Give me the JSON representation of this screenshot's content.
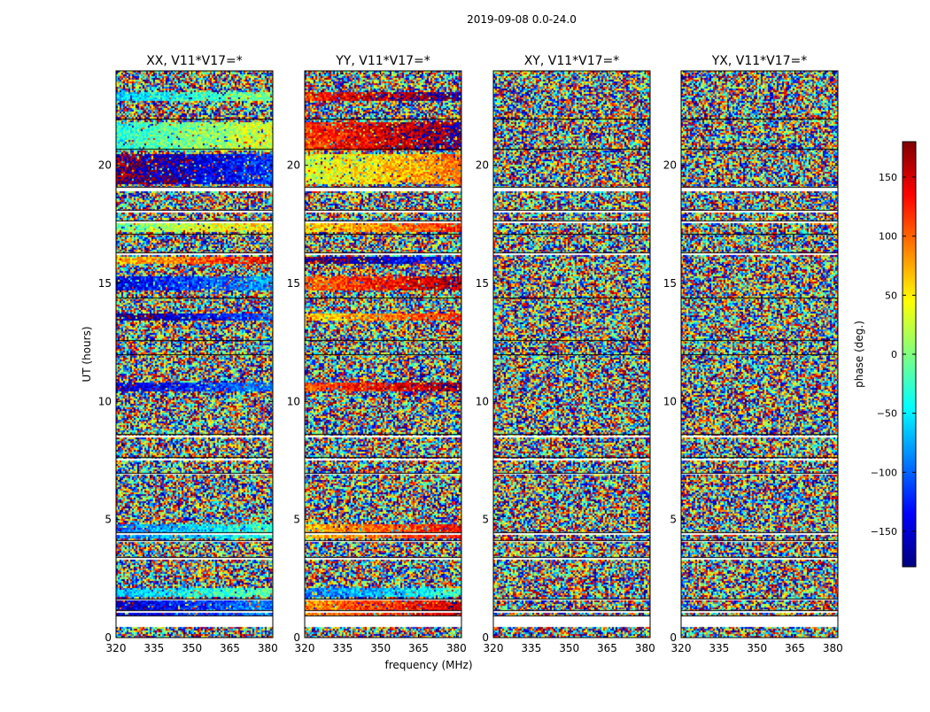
{
  "figure": {
    "suptitle": "2019-09-08 0.0-24.0",
    "xlabel": "frequency (MHz)",
    "ylabel": "UT (hours)"
  },
  "colorbar": {
    "label": "phase (deg.)",
    "range": [
      -180,
      180
    ],
    "ticks": [
      150,
      100,
      50,
      0,
      -50,
      -100,
      -150
    ],
    "tick_labels": [
      "150",
      "100",
      "50",
      "0",
      "−50",
      "−100",
      "−150"
    ],
    "colormap": "jet",
    "colors": [
      "#00007f",
      "#0000ff",
      "#007fff",
      "#00ffff",
      "#7fff7f",
      "#ffff00",
      "#ff7f00",
      "#ff0000",
      "#7f0000"
    ]
  },
  "chart_data": {
    "type": "heatmap",
    "quantity": "visibility phase (deg.)",
    "xlim": [
      320,
      382
    ],
    "ylim": [
      0,
      24
    ],
    "xticks": [
      320,
      335,
      350,
      365,
      380
    ],
    "yticks": [
      0,
      5,
      10,
      15,
      20
    ],
    "panels": [
      {
        "title": "XX, V11*V17=*",
        "show_ylabel": true,
        "show_xlabel": false,
        "coherent_bands": [
          [
            0.9,
            1.6,
            -120
          ],
          [
            1.7,
            2.1,
            -40
          ],
          [
            4.2,
            4.8,
            -60
          ],
          [
            10.4,
            10.8,
            -120
          ],
          [
            13.4,
            13.7,
            -140
          ],
          [
            14.7,
            15.3,
            -110
          ],
          [
            15.8,
            16.1,
            100
          ],
          [
            17.2,
            17.6,
            30
          ],
          [
            19.2,
            20.5,
            -150
          ],
          [
            20.6,
            21.8,
            0
          ],
          [
            22.7,
            23.1,
            -30
          ]
        ]
      },
      {
        "title": "YY, V11*V17=*",
        "show_ylabel": false,
        "show_xlabel": true,
        "coherent_bands": [
          [
            0.9,
            1.6,
            120
          ],
          [
            1.7,
            2.1,
            -60
          ],
          [
            4.2,
            4.8,
            100
          ],
          [
            10.4,
            10.8,
            140
          ],
          [
            13.4,
            13.7,
            90
          ],
          [
            14.7,
            15.3,
            130
          ],
          [
            15.8,
            16.1,
            -150
          ],
          [
            17.2,
            17.6,
            90
          ],
          [
            19.2,
            20.5,
            60
          ],
          [
            20.6,
            21.8,
            150
          ],
          [
            22.7,
            23.1,
            160
          ]
        ]
      },
      {
        "title": "XY, V11*V17=*",
        "show_ylabel": false,
        "show_xlabel": false,
        "coherent_bands": []
      },
      {
        "title": "YX, V11*V17=*",
        "show_ylabel": false,
        "show_xlabel": false,
        "coherent_bands": []
      }
    ],
    "flagged_gaps_hours": [
      [
        0.45,
        0.9
      ],
      [
        1.05,
        1.12
      ],
      [
        1.57,
        1.62
      ],
      [
        3.3,
        3.36
      ],
      [
        4.02,
        4.1
      ],
      [
        4.34,
        4.42
      ],
      [
        6.88,
        6.95
      ],
      [
        7.48,
        7.6
      ],
      [
        8.5,
        8.57
      ],
      [
        11.9,
        11.96
      ],
      [
        12.5,
        12.56
      ],
      [
        14.3,
        14.36
      ],
      [
        16.2,
        16.26
      ],
      [
        17.0,
        17.06
      ],
      [
        17.52,
        17.62
      ],
      [
        18.0,
        18.06
      ],
      [
        18.9,
        19.05
      ],
      [
        20.6,
        20.66
      ],
      [
        21.87,
        21.93
      ]
    ],
    "grid": false
  }
}
